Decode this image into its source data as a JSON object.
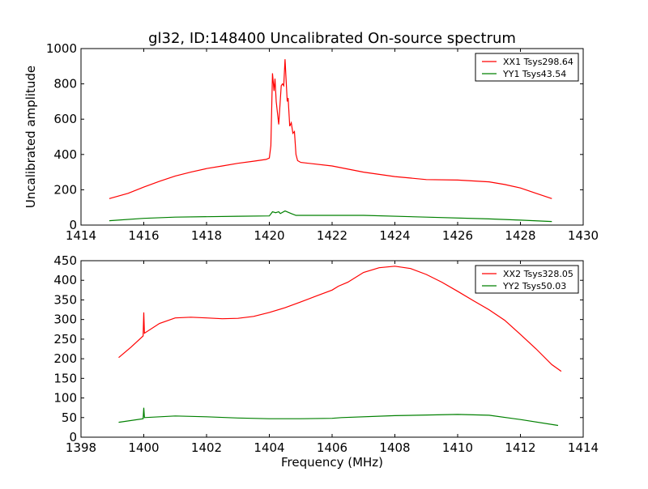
{
  "chart_data": [
    {
      "type": "line",
      "title": "gl32, ID:148400 Uncalibrated On-source spectrum",
      "xlabel": "",
      "ylabel": "Uncalibrated amplitude",
      "xlim": [
        1414,
        1430
      ],
      "ylim": [
        0,
        1000
      ],
      "xticks": [
        1414,
        1416,
        1418,
        1420,
        1422,
        1424,
        1426,
        1428,
        1430
      ],
      "yticks": [
        0,
        200,
        400,
        600,
        800,
        1000
      ],
      "legend": "top-right",
      "series": [
        {
          "name": "XX1 Tsys298.64",
          "color": "#ff0000",
          "x": [
            1414.9,
            1415.5,
            1416,
            1416.5,
            1417,
            1417.5,
            1418,
            1418.5,
            1419,
            1419.5,
            1419.9,
            1420.0,
            1420.05,
            1420.1,
            1420.15,
            1420.18,
            1420.22,
            1420.3,
            1420.38,
            1420.42,
            1420.46,
            1420.5,
            1420.57,
            1420.6,
            1420.65,
            1420.7,
            1420.75,
            1420.8,
            1420.85,
            1420.9,
            1421,
            1422,
            1423,
            1424,
            1425,
            1426,
            1427,
            1427.5,
            1428,
            1428.5,
            1429
          ],
          "y": [
            150,
            180,
            215,
            248,
            278,
            300,
            320,
            335,
            350,
            362,
            372,
            380,
            450,
            860,
            760,
            830,
            700,
            570,
            790,
            800,
            790,
            940,
            700,
            720,
            560,
            580,
            520,
            530,
            400,
            365,
            355,
            335,
            300,
            275,
            258,
            255,
            245,
            230,
            210,
            180,
            150
          ]
        },
        {
          "name": "YY1 Tsys43.54",
          "color": "#008000",
          "x": [
            1414.9,
            1416,
            1417,
            1419,
            1420,
            1420.1,
            1420.2,
            1420.3,
            1420.35,
            1420.5,
            1420.7,
            1420.85,
            1422,
            1423,
            1425,
            1427,
            1428,
            1429
          ],
          "y": [
            25,
            38,
            45,
            50,
            52,
            75,
            70,
            75,
            65,
            80,
            65,
            55,
            55,
            55,
            45,
            35,
            28,
            20
          ]
        }
      ]
    },
    {
      "type": "line",
      "title": "",
      "xlabel": "Frequency (MHz)",
      "ylabel": "",
      "xlim": [
        1398,
        1414
      ],
      "ylim": [
        0,
        450
      ],
      "xticks": [
        1398,
        1400,
        1402,
        1404,
        1406,
        1408,
        1410,
        1412,
        1414
      ],
      "yticks": [
        0,
        50,
        100,
        150,
        200,
        250,
        300,
        350,
        400,
        450
      ],
      "legend": "top-right",
      "series": [
        {
          "name": "XX2 Tsys328.05",
          "color": "#ff0000",
          "x": [
            1399.2,
            1399.6,
            1399.98,
            1400,
            1400.02,
            1400.5,
            1401,
            1401.5,
            1402,
            1402.5,
            1403,
            1403.5,
            1404,
            1404.5,
            1405,
            1405.5,
            1406,
            1406.2,
            1406.5,
            1407,
            1407.5,
            1408,
            1408.5,
            1409,
            1409.5,
            1410,
            1410.5,
            1411,
            1411.5,
            1412,
            1412.5,
            1413,
            1413.3
          ],
          "y": [
            203,
            230,
            258,
            318,
            265,
            290,
            304,
            306,
            304,
            302,
            303,
            308,
            318,
            330,
            345,
            360,
            375,
            385,
            395,
            420,
            432,
            436,
            430,
            415,
            395,
            372,
            348,
            325,
            298,
            262,
            225,
            185,
            168
          ]
        },
        {
          "name": "YY2 Tsys50.03",
          "color": "#008000",
          "x": [
            1399.2,
            1399.98,
            1400,
            1400.02,
            1401,
            1402,
            1403,
            1404,
            1405,
            1406,
            1406.3,
            1408,
            1410,
            1411,
            1412,
            1413.2
          ],
          "y": [
            38,
            47,
            75,
            50,
            54,
            52,
            49,
            47,
            47,
            48,
            50,
            55,
            58,
            56,
            45,
            30
          ]
        }
      ]
    }
  ]
}
